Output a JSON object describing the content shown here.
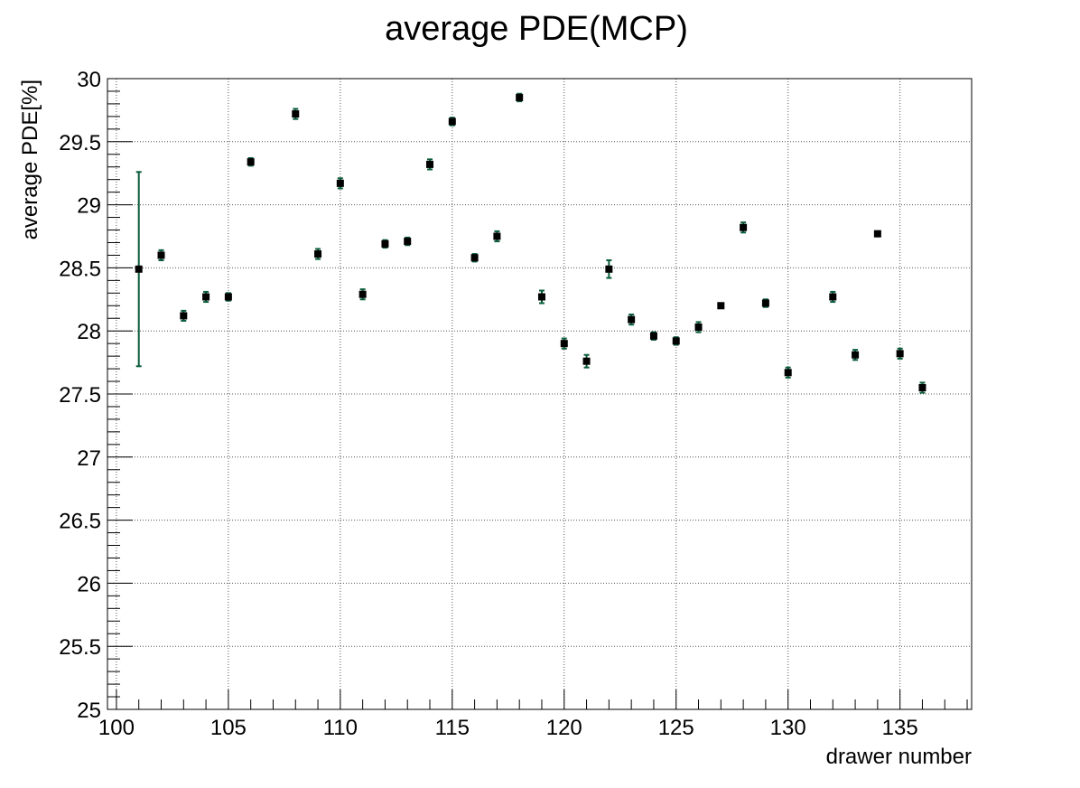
{
  "chart_data": {
    "type": "scatter",
    "title": "average PDE(MCP)",
    "xlabel": "drawer number",
    "ylabel": "average PDE[%]",
    "xlim": [
      99.6,
      138.2
    ],
    "ylim": [
      25,
      30
    ],
    "xticks": [
      100,
      105,
      110,
      115,
      120,
      125,
      130,
      135
    ],
    "yticks": [
      25,
      25.5,
      26,
      26.5,
      27,
      27.5,
      28,
      28.5,
      29,
      29.5,
      30
    ],
    "xtick_labels": [
      "100",
      "105",
      "110",
      "115",
      "120",
      "125",
      "130",
      "135"
    ],
    "ytick_labels": [
      "25",
      "25.5",
      "26",
      "26.5",
      "27",
      "27.5",
      "28",
      "28.5",
      "29",
      "29.5",
      "30"
    ],
    "grid": true,
    "marker_color": "#000000",
    "errorbar_color": "#0b5d3b",
    "points": [
      {
        "x": 101,
        "y": 28.49,
        "err": 0.77
      },
      {
        "x": 102,
        "y": 28.6,
        "err": 0.04
      },
      {
        "x": 103,
        "y": 28.12,
        "err": 0.04
      },
      {
        "x": 104,
        "y": 28.27,
        "err": 0.04
      },
      {
        "x": 105,
        "y": 28.27,
        "err": 0.03
      },
      {
        "x": 106,
        "y": 29.34,
        "err": 0.03
      },
      {
        "x": 108,
        "y": 29.72,
        "err": 0.04
      },
      {
        "x": 109,
        "y": 28.61,
        "err": 0.04
      },
      {
        "x": 110,
        "y": 29.17,
        "err": 0.04
      },
      {
        "x": 111,
        "y": 28.29,
        "err": 0.04
      },
      {
        "x": 112,
        "y": 28.69,
        "err": 0.03
      },
      {
        "x": 113,
        "y": 28.71,
        "err": 0.03
      },
      {
        "x": 114,
        "y": 29.32,
        "err": 0.04
      },
      {
        "x": 115,
        "y": 29.66,
        "err": 0.03
      },
      {
        "x": 116,
        "y": 28.58,
        "err": 0.03
      },
      {
        "x": 117,
        "y": 28.75,
        "err": 0.04
      },
      {
        "x": 118,
        "y": 29.85,
        "err": 0.03
      },
      {
        "x": 119,
        "y": 28.27,
        "err": 0.05
      },
      {
        "x": 120,
        "y": 27.9,
        "err": 0.04
      },
      {
        "x": 121,
        "y": 27.76,
        "err": 0.05
      },
      {
        "x": 122,
        "y": 28.49,
        "err": 0.07
      },
      {
        "x": 123,
        "y": 28.09,
        "err": 0.04
      },
      {
        "x": 124,
        "y": 27.96,
        "err": 0.03
      },
      {
        "x": 125,
        "y": 27.92,
        "err": 0.03
      },
      {
        "x": 126,
        "y": 28.03,
        "err": 0.04
      },
      {
        "x": 127,
        "y": 28.2,
        "err": 0.02
      },
      {
        "x": 128,
        "y": 28.82,
        "err": 0.04
      },
      {
        "x": 129,
        "y": 28.22,
        "err": 0.03
      },
      {
        "x": 130,
        "y": 27.67,
        "err": 0.04
      },
      {
        "x": 132,
        "y": 28.27,
        "err": 0.04
      },
      {
        "x": 133,
        "y": 27.81,
        "err": 0.04
      },
      {
        "x": 134,
        "y": 28.77,
        "err": 0.02
      },
      {
        "x": 135,
        "y": 27.82,
        "err": 0.04
      },
      {
        "x": 136,
        "y": 27.55,
        "err": 0.04
      }
    ]
  }
}
